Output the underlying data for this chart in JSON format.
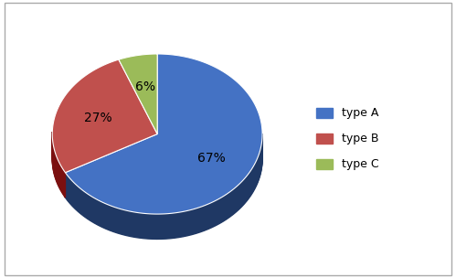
{
  "labels": [
    "type A",
    "type B",
    "type C"
  ],
  "values": [
    67,
    27,
    6
  ],
  "colors": [
    "#4472C4",
    "#C0504D",
    "#9BBB59"
  ],
  "dark_colors": [
    "#1F3864",
    "#7B1010",
    "#4A5A10"
  ],
  "pct_labels": [
    "67%",
    "27%",
    "6%"
  ],
  "startangle": 90,
  "counterclock": false,
  "legend_labels": [
    "type A",
    "type B",
    "type C"
  ],
  "background_color": "#ffffff",
  "border_color": "#AAAAAA",
  "label_color": "black",
  "label_fontsize": 10
}
